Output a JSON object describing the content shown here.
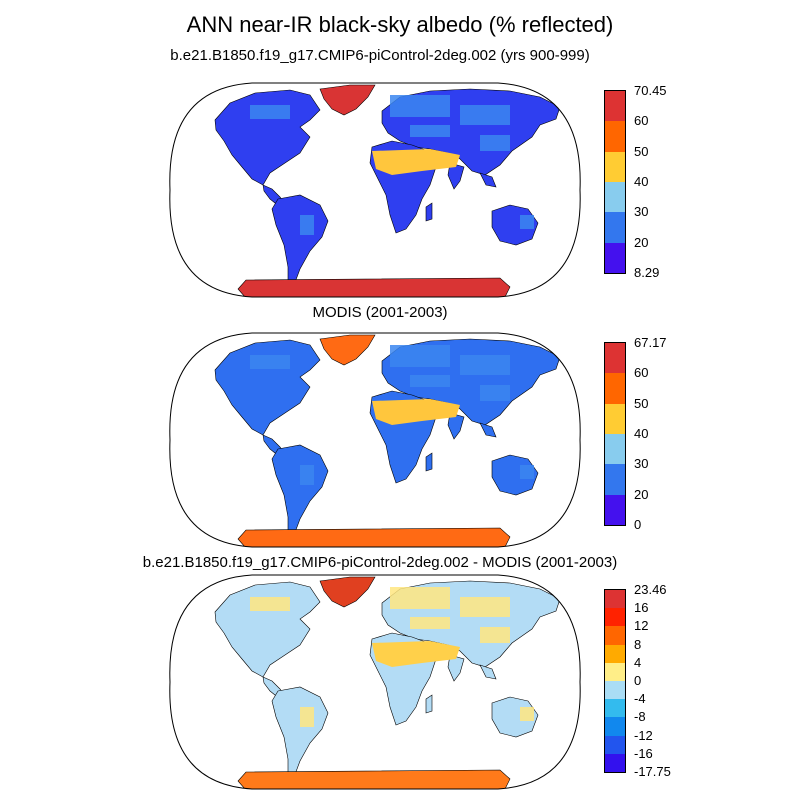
{
  "title": "ANN near-IR black-sky albedo (% reflected)",
  "panels": [
    {
      "title": "b.e21.B1850.f19_g17.CMIP6-piControl-2deg.002 (yrs 900-999)",
      "colorbar": {
        "labels": [
          "70.45",
          "60",
          "50",
          "40",
          "30",
          "20",
          "8.29"
        ],
        "colors": [
          "#dd3333",
          "#ff6600",
          "#ffcc33",
          "#88ccee",
          "#3377ee",
          "#4411ee"
        ],
        "fill": {
          "land": "#2f3ff0",
          "patch": "#3b86f0",
          "desert": "#ffc63d",
          "antarctica": "#d93434",
          "greenland": "#d93434"
        }
      }
    },
    {
      "title": "MODIS (2001-2003)",
      "colorbar": {
        "labels": [
          "67.17",
          "60",
          "50",
          "40",
          "30",
          "20",
          "0"
        ],
        "colors": [
          "#dd3333",
          "#ff6600",
          "#ffcc33",
          "#88ccee",
          "#3377ee",
          "#4411ee"
        ],
        "fill": {
          "land": "#2f6ff0",
          "patch": "#3b86f0",
          "desert": "#ffc63d",
          "antarctica": "#ff6a14",
          "greenland": "#ff6a14"
        }
      }
    },
    {
      "title": "b.e21.B1850.f19_g17.CMIP6-piControl-2deg.002 - MODIS (2001-2003)",
      "colorbar": {
        "labels": [
          "23.46",
          "16",
          "12",
          "8",
          "4",
          "0",
          "-4",
          "-8",
          "-12",
          "-16",
          "-17.75"
        ],
        "colors": [
          "#dd3333",
          "#ff2200",
          "#ff6600",
          "#ffaa00",
          "#ffee88",
          "#aaddf5",
          "#33bbee",
          "#1188ee",
          "#2255ee",
          "#3311ee"
        ],
        "fill": {
          "land": "#b3dcf5",
          "patch": "#ffe680",
          "desert": "#ffd04a",
          "antarctica": "#ff7a1a",
          "greenland": "#e04020"
        }
      }
    }
  ]
}
